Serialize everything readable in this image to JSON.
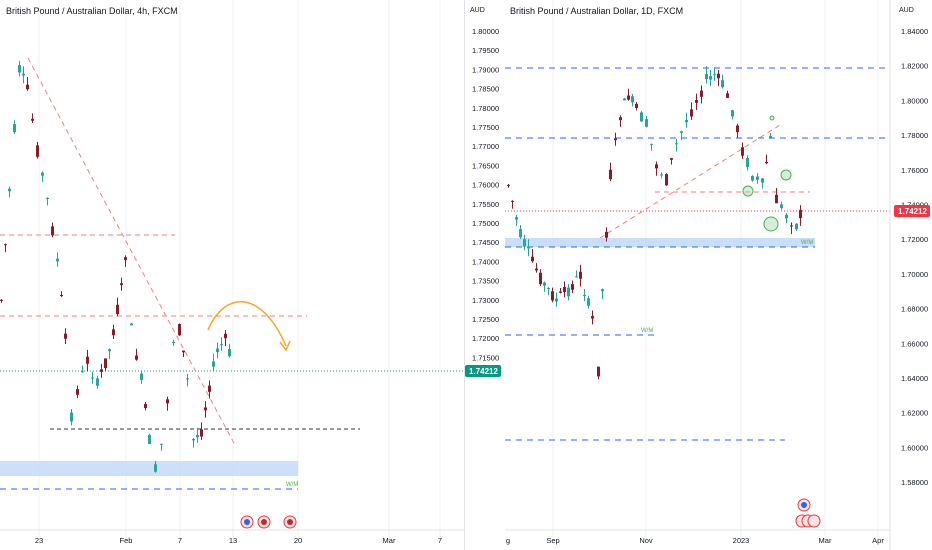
{
  "left_chart": {
    "title": "British Pound / Australian Dollar, 4h, FXCM",
    "axis_unit": "AUD",
    "price_ticks": [
      "1.80000",
      "1.79500",
      "1.79000",
      "1.78500",
      "1.78000",
      "1.77500",
      "1.77000",
      "1.76500",
      "1.76000",
      "1.75500",
      "1.75000",
      "1.74500",
      "1.74000",
      "1.73500",
      "1.73000",
      "1.72500",
      "1.72000",
      "1.71500"
    ],
    "x_ticks": [
      "23",
      "Feb",
      "7",
      "13",
      "20",
      "Mar",
      "7"
    ],
    "current_price": "1.74212",
    "zone_label": "W/M",
    "colors": {
      "up": "#26a69a",
      "down": "#8b1a2b",
      "current": "#089981",
      "arrow": "#f5a623",
      "dashed_red": "#f77c80",
      "dashed_blue": "#2962ff"
    }
  },
  "right_chart": {
    "title": "British Pound / Australian Dollar, 1D, FXCM",
    "axis_unit": "AUD",
    "price_ticks": [
      "1.84000",
      "1.82000",
      "1.80000",
      "1.78000",
      "1.76000",
      "1.74000",
      "1.72000",
      "1.70000",
      "1.68000",
      "1.66000",
      "1.64000",
      "1.62000",
      "1.60000",
      "1.58000"
    ],
    "x_ticks": [
      "g",
      "Sep",
      "Nov",
      "2023",
      "Mar",
      "Apr"
    ],
    "current_price": "1.74212",
    "zone_label_top": "W/M",
    "zone_label_mid": "W/M",
    "colors": {
      "up": "#26a69a",
      "down": "#8b1a2b",
      "current": "#f23645",
      "dashed_blue": "#2962ff"
    }
  }
}
